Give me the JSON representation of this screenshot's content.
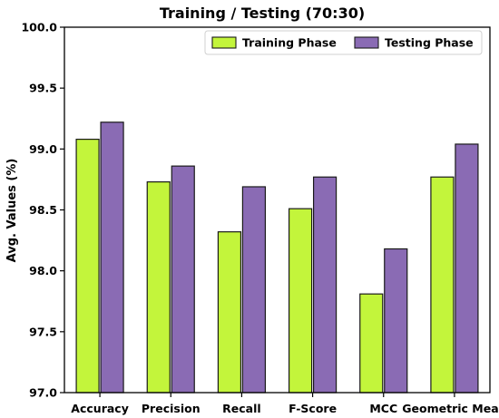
{
  "chart_data": {
    "type": "bar",
    "title": "Training / Testing (70:30)",
    "xlabel": "",
    "ylabel": "Avg. Values (%)",
    "categories": [
      "Accuracy",
      "Precision",
      "Recall",
      "F-Score",
      "MCC",
      "Geometric Mean"
    ],
    "series": [
      {
        "name": "Training Phase",
        "color": "#c3f53b",
        "values": [
          99.08,
          98.73,
          98.32,
          98.51,
          97.81,
          98.77
        ]
      },
      {
        "name": "Testing Phase",
        "color": "#8a6bb4",
        "values": [
          99.22,
          98.86,
          98.69,
          98.77,
          98.18,
          99.04
        ]
      }
    ],
    "ylim": [
      97.0,
      100.0
    ],
    "yticks": [
      "97.0",
      "97.5",
      "98.0",
      "98.5",
      "99.0",
      "99.5",
      "100.0"
    ],
    "grid": false,
    "legend_position": "top-right"
  }
}
